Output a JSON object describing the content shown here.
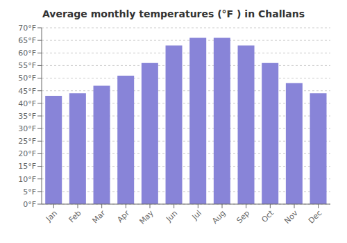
{
  "chart_data": {
    "type": "bar",
    "title": "Average monthly temperatures (°F ) in Challans",
    "categories": [
      "Jan",
      "Feb",
      "Mar",
      "Apr",
      "May",
      "Jun",
      "Jul",
      "Aug",
      "Sep",
      "Oct",
      "Nov",
      "Dec"
    ],
    "values": [
      43,
      44,
      47,
      51,
      56,
      63,
      66,
      66,
      63,
      56,
      48,
      44
    ],
    "ylim": [
      0,
      70
    ],
    "yticks": [
      {
        "value": 0,
        "label": "0°F"
      },
      {
        "value": 5,
        "label": "5°F"
      },
      {
        "value": 10,
        "label": "10°F"
      },
      {
        "value": 15,
        "label": "15°F"
      },
      {
        "value": 20,
        "label": "20°F"
      },
      {
        "value": 25,
        "label": "25°F"
      },
      {
        "value": 30,
        "label": "30°F"
      },
      {
        "value": 35,
        "label": "35°F"
      },
      {
        "value": 40,
        "label": "40°F"
      },
      {
        "value": 45,
        "label": "45°F"
      },
      {
        "value": 50,
        "label": "50°F"
      },
      {
        "value": 55,
        "label": "55°F"
      },
      {
        "value": 60,
        "label": "60°F"
      },
      {
        "value": 65,
        "label": "65°F"
      },
      {
        "value": 70,
        "label": "70°F"
      }
    ],
    "grid": true
  }
}
